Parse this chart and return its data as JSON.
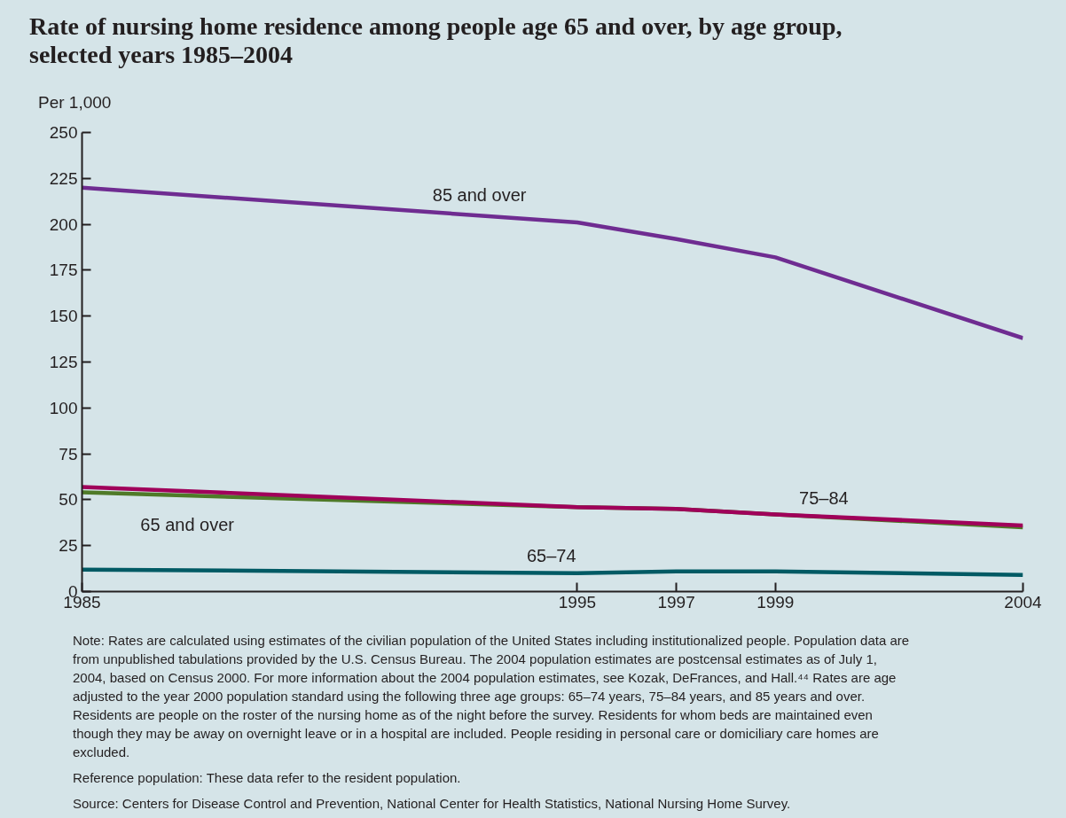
{
  "chart_data": {
    "type": "line",
    "title": "Rate of nursing home residence among people age 65 and over, by age group, selected years 1985–2004",
    "ylabel": "Per 1,000",
    "x": [
      1985,
      1995,
      1997,
      1999,
      2004
    ],
    "series": [
      {
        "name": "85 and over",
        "color": "#6f2c91",
        "values": [
          220,
          201,
          192,
          182,
          138
        ]
      },
      {
        "name": "65 and over",
        "color": "#4f7a28",
        "values": [
          54,
          46,
          45,
          42,
          35
        ]
      },
      {
        "name": "75–84",
        "color": "#a0005a",
        "values": [
          57,
          46,
          45,
          42,
          36
        ]
      },
      {
        "name": "65–74",
        "color": "#005a64",
        "values": [
          12,
          10,
          11,
          11,
          9
        ]
      }
    ],
    "xlim": [
      1985,
      2004
    ],
    "xticks": [
      1985,
      1995,
      1997,
      1999,
      2004
    ],
    "ylim": [
      0,
      250
    ],
    "yticks": [
      0,
      25,
      50,
      75,
      100,
      125,
      150,
      175,
      200,
      225,
      250
    ],
    "grid": false,
    "legend": false,
    "marker": "none",
    "line_style": "solid",
    "annotations": [
      "Note: Rates are calculated using estimates of the civilian population of the United States including institutionalized people. Population data are from unpublished tabulations provided by the U.S. Census Bureau. The 2004 population estimates are postcensal estimates as of July 1, 2004, based on Census 2000. For more information about the 2004 population estimates, see Kozak, DeFrances, and Hall.⁴⁴ Rates are age adjusted to the year 2000 population standard using the following three age groups: 65–74 years, 75–84 years, and 85 years and over. Residents are people on the roster of the nursing home as of the night before the survey. Residents for whom beds are maintained even though they may be away on overnight leave or in a hospital are included. People residing in personal care or domiciliary care homes are excluded.",
      "Reference population: These data refer to the resident population.",
      "Source: Centers for Disease Control and Prevention, National Center for Health Statistics, National Nursing Home Survey."
    ]
  }
}
